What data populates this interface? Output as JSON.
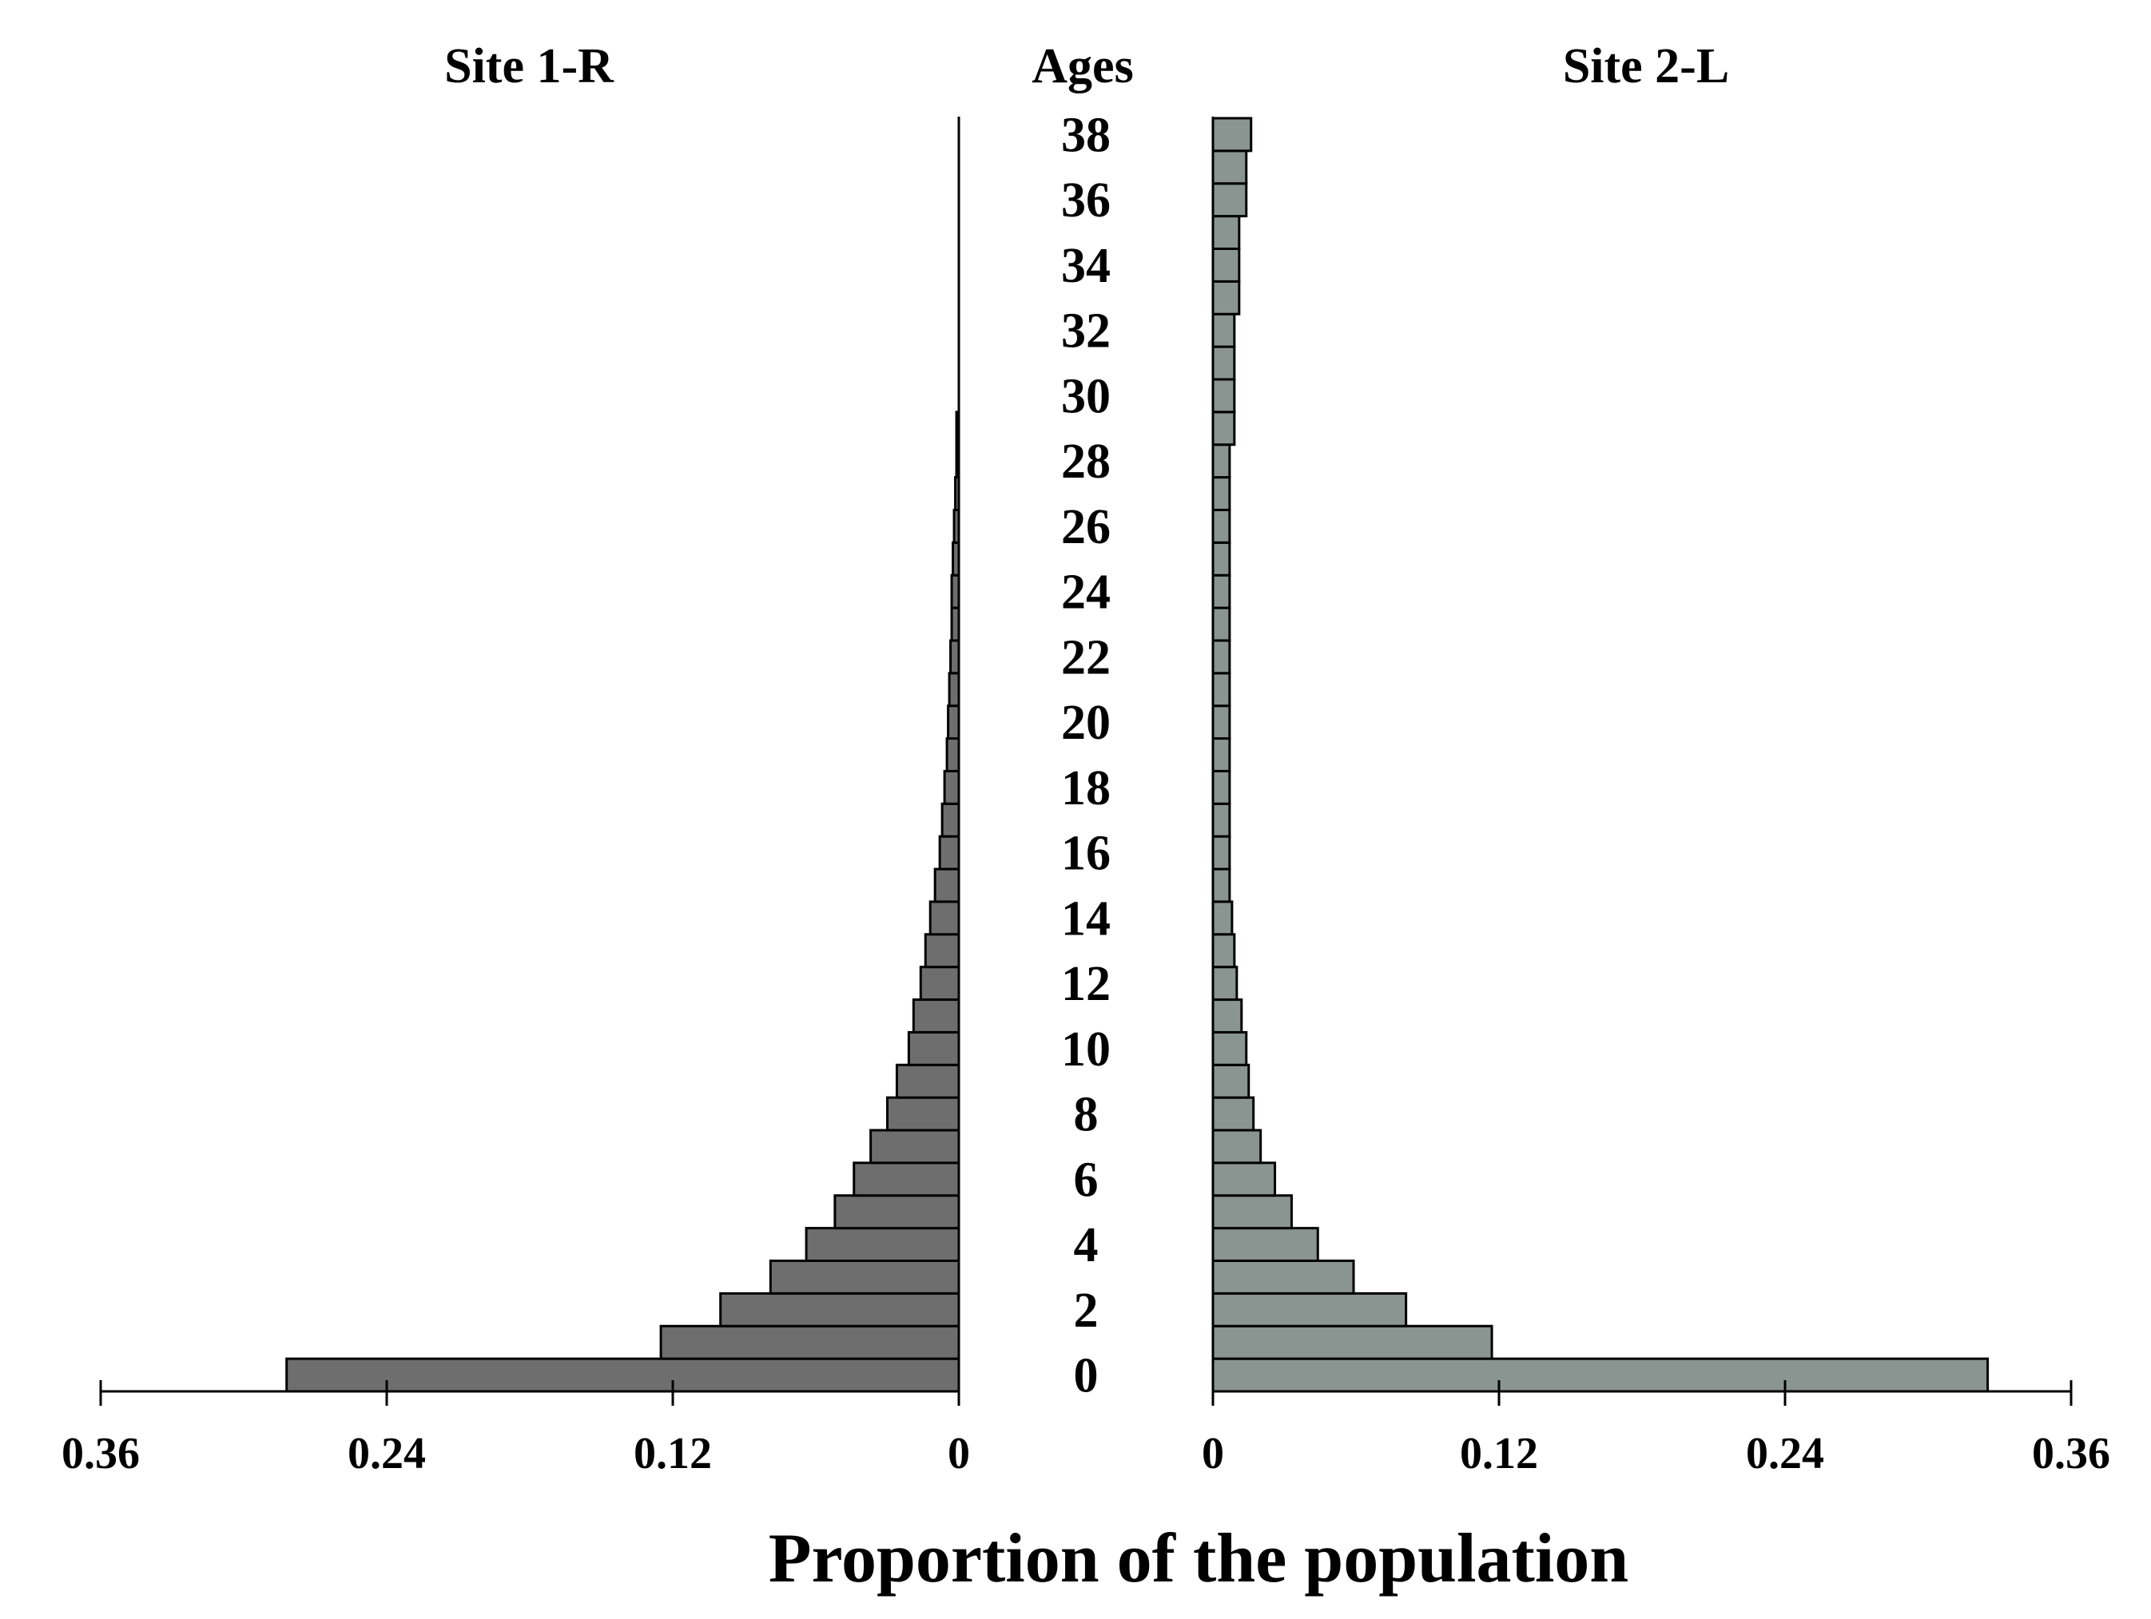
{
  "chart_data": {
    "type": "bar",
    "subtype": "population-pyramid",
    "left_panel_title": "Site 1-R",
    "center_label": "Ages",
    "right_panel_title": "Site 2-L",
    "xlabel": "Proportion of the population",
    "xlim": [
      0,
      0.36
    ],
    "x_ticks": [
      0,
      0.12,
      0.24,
      0.36
    ],
    "x_tick_labels_left": [
      "0.36",
      "0.24",
      "0.12",
      "0"
    ],
    "x_tick_labels_right": [
      "0",
      "0.12",
      "0.24",
      "0.36"
    ],
    "age_tick_labels": [
      "38",
      "36",
      "34",
      "32",
      "30",
      "28",
      "26",
      "24",
      "22",
      "20",
      "18",
      "16",
      "14",
      "12",
      "10",
      "8",
      "6",
      "4",
      "2",
      "0"
    ],
    "ages": [
      0,
      1,
      2,
      3,
      4,
      5,
      6,
      7,
      8,
      9,
      10,
      11,
      12,
      13,
      14,
      15,
      16,
      17,
      18,
      19,
      20,
      21,
      22,
      23,
      24,
      25,
      26,
      27,
      28,
      29,
      30,
      31,
      32,
      33,
      34,
      35,
      36,
      37,
      38
    ],
    "series": [
      {
        "name": "Site 1-R",
        "side": "left",
        "color": "#6e6e6e",
        "values": [
          0.282,
          0.125,
          0.1,
          0.079,
          0.064,
          0.052,
          0.044,
          0.037,
          0.03,
          0.026,
          0.021,
          0.019,
          0.016,
          0.014,
          0.012,
          0.01,
          0.008,
          0.007,
          0.006,
          0.005,
          0.0045,
          0.004,
          0.0035,
          0.003,
          0.003,
          0.0025,
          0.002,
          0.0015,
          0.001,
          0.001,
          0,
          0,
          0,
          0,
          0,
          0,
          0,
          0,
          0
        ]
      },
      {
        "name": "Site 2-L",
        "side": "right",
        "color": "#8a9591",
        "values": [
          0.325,
          0.117,
          0.081,
          0.059,
          0.044,
          0.033,
          0.026,
          0.02,
          0.017,
          0.015,
          0.014,
          0.012,
          0.01,
          0.009,
          0.008,
          0.007,
          0.007,
          0.007,
          0.007,
          0.007,
          0.007,
          0.007,
          0.007,
          0.007,
          0.007,
          0.007,
          0.007,
          0.007,
          0.007,
          0.009,
          0.009,
          0.009,
          0.009,
          0.011,
          0.011,
          0.011,
          0.014,
          0.014,
          0.016
        ]
      }
    ]
  }
}
